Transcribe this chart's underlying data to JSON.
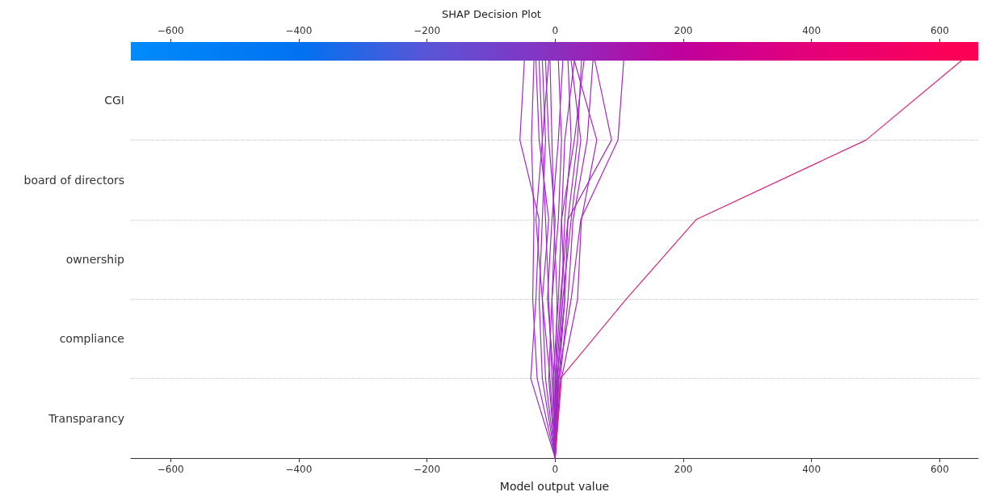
{
  "chart_data": {
    "type": "line",
    "orientation": "horizontal",
    "title": "SHAP Decision Plot",
    "xlabel": "Model output value",
    "xlim": [
      -662,
      660
    ],
    "xticks": [
      -600,
      -400,
      -200,
      0,
      200,
      400,
      600
    ],
    "categories": [
      null,
      "CGI",
      null,
      "board of directors",
      null,
      "ownership",
      null,
      "compliance",
      null,
      "Transparancy",
      null
    ],
    "x2lim": [
      -662,
      660
    ],
    "x2ticks": [
      -600,
      -400,
      -200,
      0,
      200,
      400,
      600
    ],
    "grid": "y",
    "marker": "none",
    "line_style": "solid",
    "series": [
      {
        "color": "#9b2dc4",
        "values": [
          -48,
          null,
          -55,
          null,
          -25,
          null,
          -30,
          null,
          -38,
          null,
          0
        ]
      },
      {
        "color": "#9b2dc4",
        "values": [
          -33,
          null,
          -37,
          null,
          -33,
          null,
          -35,
          null,
          -28,
          null,
          0
        ]
      },
      {
        "color": "#9b2dc4",
        "values": [
          -30,
          null,
          -25,
          null,
          -10,
          null,
          -20,
          null,
          -15,
          null,
          0
        ]
      },
      {
        "color": "#9b2dc4",
        "values": [
          -25,
          null,
          -20,
          null,
          -15,
          null,
          -10,
          null,
          -5,
          null,
          0
        ]
      },
      {
        "color": "#a327b8",
        "values": [
          107,
          null,
          98,
          null,
          40,
          null,
          25,
          null,
          5,
          null,
          0
        ]
      },
      {
        "color": "#a029bc",
        "values": [
          30,
          null,
          65,
          null,
          41,
          null,
          35,
          null,
          10,
          null,
          0
        ]
      },
      {
        "color": "#a029bc",
        "values": [
          59,
          null,
          50,
          null,
          28,
          null,
          20,
          null,
          8,
          null,
          0
        ]
      },
      {
        "color": "#9e2abf",
        "values": [
          41,
          null,
          35,
          null,
          20,
          null,
          15,
          null,
          3,
          null,
          0
        ]
      },
      {
        "color": "#9e2abf",
        "values": [
          20,
          null,
          25,
          null,
          15,
          null,
          10,
          null,
          2,
          null,
          0
        ]
      },
      {
        "color": "#9e2abf",
        "values": [
          30,
          null,
          15,
          null,
          10,
          null,
          5,
          null,
          -3,
          null,
          0
        ]
      },
      {
        "color": "#9b2dc4",
        "values": [
          -15,
          null,
          -10,
          null,
          0,
          null,
          -5,
          null,
          -10,
          null,
          0
        ]
      },
      {
        "color": "#9d2bc1",
        "values": [
          5,
          null,
          10,
          null,
          5,
          null,
          -5,
          null,
          0,
          null,
          0
        ]
      },
      {
        "color": "#9b2dc4",
        "values": [
          -10,
          null,
          -20,
          null,
          -30,
          null,
          -20,
          null,
          -8,
          null,
          0
        ]
      },
      {
        "color": "#9e2abf",
        "values": [
          25,
          null,
          40,
          null,
          25,
          null,
          12,
          null,
          4,
          null,
          0
        ]
      },
      {
        "color": "#9d2bc1",
        "values": [
          12,
          null,
          5,
          null,
          -5,
          null,
          -12,
          null,
          -2,
          null,
          0
        ]
      },
      {
        "color": "#9d2bc1",
        "values": [
          -8,
          null,
          -5,
          null,
          -2,
          null,
          3,
          null,
          1,
          null,
          0
        ]
      },
      {
        "color": "#9e2abf",
        "values": [
          45,
          null,
          30,
          null,
          10,
          null,
          15,
          null,
          6,
          null,
          0
        ]
      },
      {
        "color": "#9b2dc4",
        "values": [
          -20,
          null,
          -15,
          null,
          -20,
          null,
          -25,
          null,
          -20,
          null,
          0
        ]
      },
      {
        "color": "#a128bb",
        "values": [
          62,
          null,
          88,
          null,
          20,
          null,
          8,
          null,
          0,
          null,
          0
        ]
      },
      {
        "color": "#d8237a",
        "values": [
          634,
          null,
          485,
          null,
          220,
          null,
          111,
          null,
          8,
          null,
          0
        ]
      }
    ]
  }
}
